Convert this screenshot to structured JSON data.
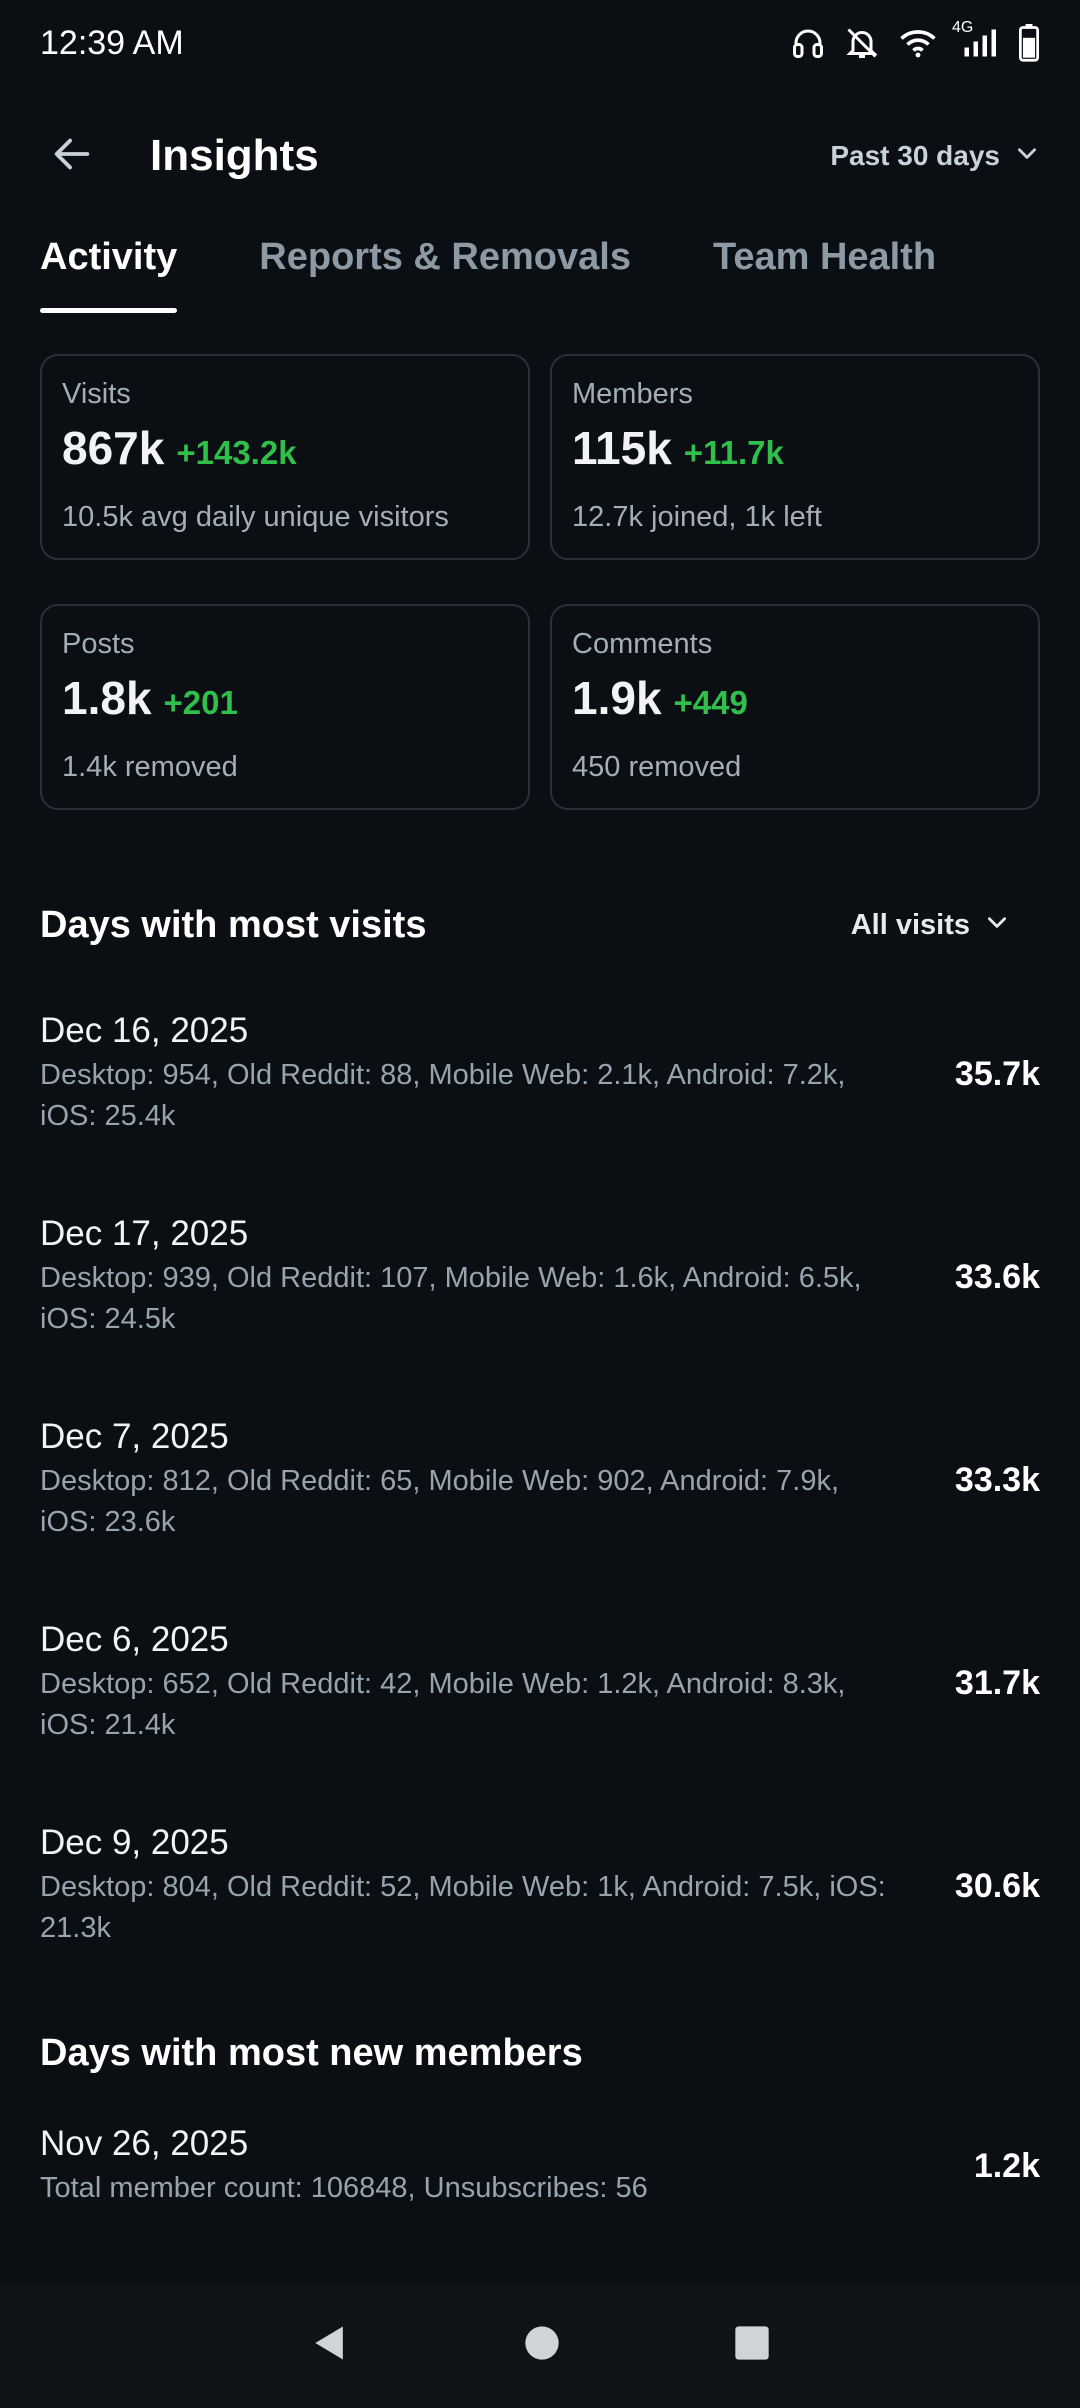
{
  "status": {
    "time": "12:39 AM",
    "network": "4G"
  },
  "header": {
    "title": "Insights",
    "range": "Past 30 days"
  },
  "tabs": [
    {
      "label": "Activity"
    },
    {
      "label": "Reports & Removals"
    },
    {
      "label": "Team Health"
    }
  ],
  "cards": [
    {
      "label": "Visits",
      "value": "867k",
      "delta": "+143.2k",
      "sub": "10.5k avg daily unique visitors"
    },
    {
      "label": "Members",
      "value": "115k",
      "delta": "+11.7k",
      "sub": "12.7k joined, 1k left"
    },
    {
      "label": "Posts",
      "value": "1.8k",
      "delta": "+201",
      "sub": "1.4k removed"
    },
    {
      "label": "Comments",
      "value": "1.9k",
      "delta": "+449",
      "sub": "450 removed"
    }
  ],
  "visits_section": {
    "title": "Days with most visits",
    "filter": "All visits",
    "rows": [
      {
        "date": "Dec 16, 2025",
        "detail": "Desktop: 954, Old Reddit: 88, Mobile Web: 2.1k, Android: 7.2k, iOS: 25.4k",
        "total": "35.7k"
      },
      {
        "date": "Dec 17, 2025",
        "detail": "Desktop: 939, Old Reddit: 107, Mobile Web: 1.6k, Android: 6.5k, iOS: 24.5k",
        "total": "33.6k"
      },
      {
        "date": "Dec 7, 2025",
        "detail": "Desktop: 812, Old Reddit: 65, Mobile Web: 902, Android: 7.9k, iOS: 23.6k",
        "total": "33.3k"
      },
      {
        "date": "Dec 6, 2025",
        "detail": "Desktop: 652, Old Reddit: 42, Mobile Web: 1.2k, Android: 8.3k, iOS: 21.4k",
        "total": "31.7k"
      },
      {
        "date": "Dec 9, 2025",
        "detail": "Desktop: 804, Old Reddit: 52, Mobile Web: 1k, Android: 7.5k, iOS: 21.3k",
        "total": "30.6k"
      }
    ]
  },
  "members_section": {
    "title": "Days with most new members",
    "rows": [
      {
        "date": "Nov 26, 2025",
        "detail": "Total member count: 106848, Unsubscribes: 56",
        "total": "1.2k"
      }
    ]
  },
  "icons": {
    "back": "arrow-left-icon",
    "range_chevron": "chevron-down-icon",
    "nav": [
      "back-triangle-icon",
      "home-circle-icon",
      "recents-square-icon"
    ]
  },
  "colors": {
    "background": "#0b0f13",
    "positive": "#2fbf4a",
    "muted": "#97a3ad",
    "card_border": "#2a3138"
  }
}
